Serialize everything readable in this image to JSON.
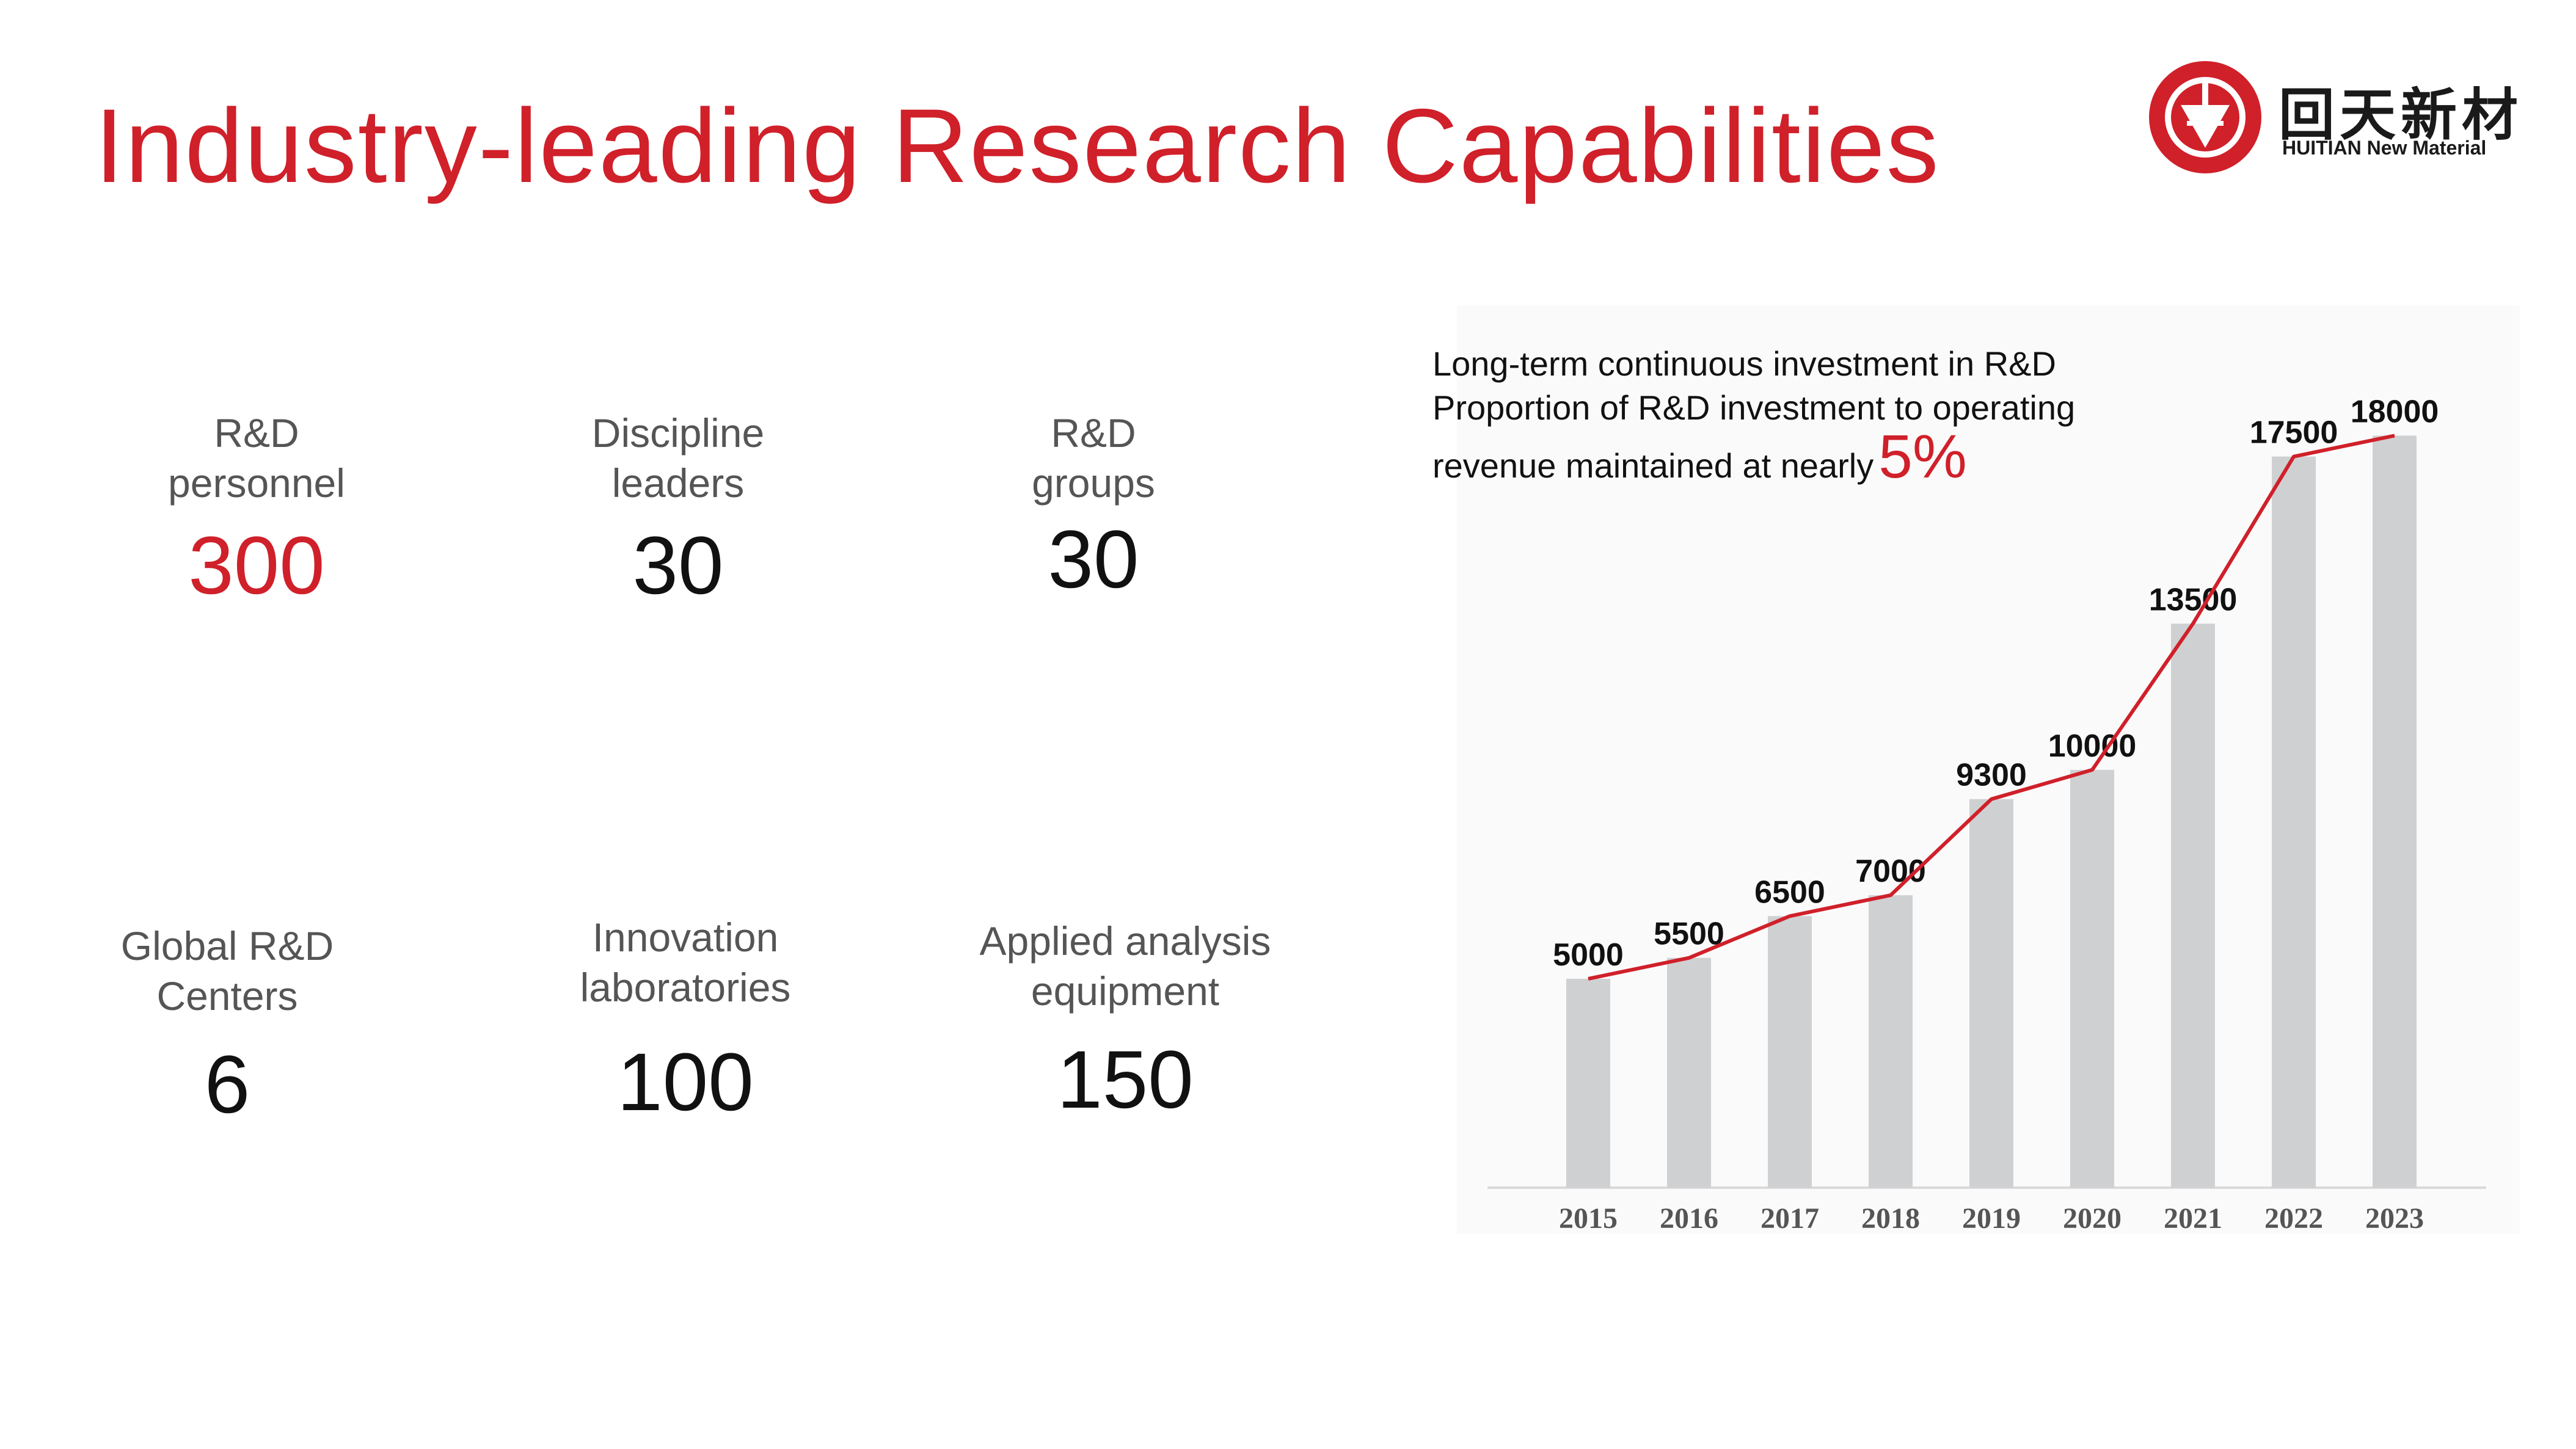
{
  "title": "Industry-leading Research Capabilities",
  "logo": {
    "name_cn": "回天新材",
    "name_en": "HUITIAN New Material",
    "brand_color": "#d0202a"
  },
  "stats": [
    {
      "label_1": "R&D",
      "label_2": "personnel",
      "value": "300",
      "highlight": true
    },
    {
      "label_1": "Discipline",
      "label_2": "leaders",
      "value": "30",
      "highlight": false
    },
    {
      "label_1": "R&D",
      "label_2": "groups",
      "value": "30",
      "highlight": false
    },
    {
      "label_1": "Global R&D",
      "label_2": "Centers",
      "value": "6",
      "highlight": false
    },
    {
      "label_1": "Innovation",
      "label_2": "laboratories",
      "value": "100",
      "highlight": false
    },
    {
      "label_1": "Applied analysis",
      "label_2": "equipment",
      "value": "150",
      "highlight": false
    }
  ],
  "caption": {
    "line1": "Long-term continuous investment in R&D",
    "line2": "Proportion of R&D investment to operating",
    "line3": "revenue maintained at nearly",
    "percent": "5%"
  },
  "chart_data": {
    "type": "bar",
    "categories": [
      "2015",
      "2016",
      "2017",
      "2018",
      "2019",
      "2020",
      "2021",
      "2022",
      "2023"
    ],
    "values": [
      5000,
      5500,
      6500,
      7000,
      9300,
      10000,
      13500,
      17500,
      18000
    ],
    "value_labels": [
      "5000",
      "5500",
      "6500",
      "7000",
      "9300",
      "10000",
      "13500",
      "17500",
      "18000"
    ],
    "overlay": "line",
    "bar_color": "#cfd0d2",
    "line_color": "#d0202a",
    "grid": false,
    "ylim": [
      0,
      19000
    ]
  }
}
